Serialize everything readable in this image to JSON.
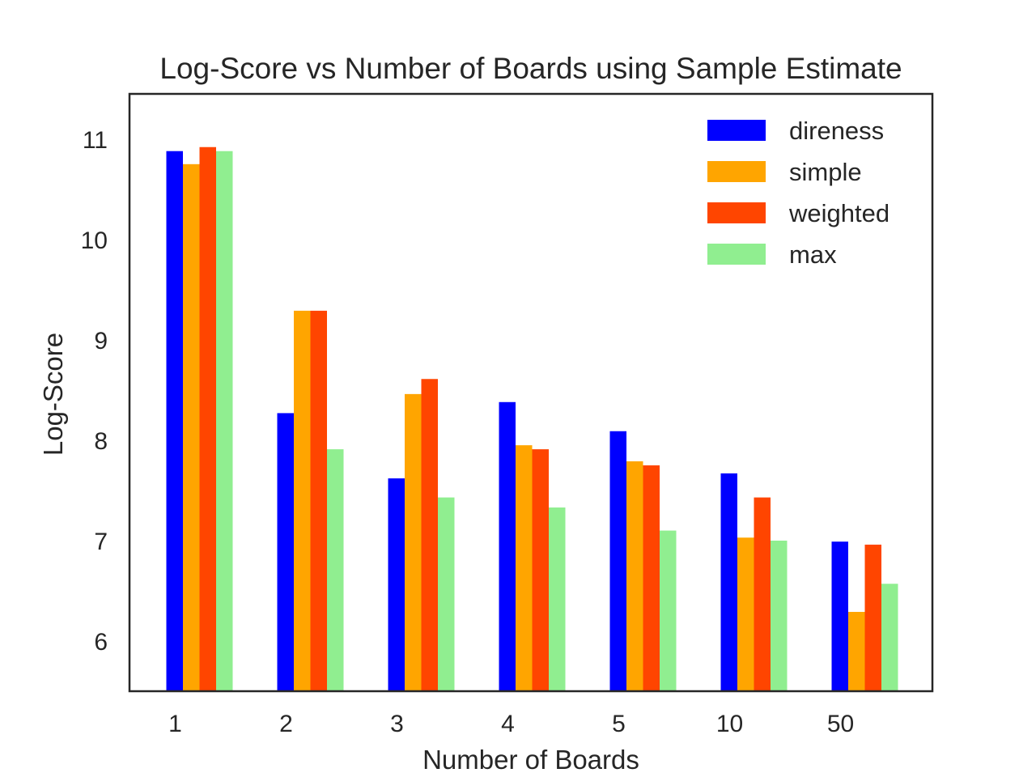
{
  "chart_data": {
    "type": "bar",
    "title": "Log-Score vs Number of Boards using Sample Estimate",
    "xlabel": "Number of Boards",
    "ylabel": "Log-Score",
    "categories": [
      "1",
      "2",
      "3",
      "4",
      "5",
      "10",
      "50"
    ],
    "ylim": [
      5.5,
      11.45
    ],
    "yticks": [
      6,
      7,
      8,
      9,
      10,
      11
    ],
    "grid": false,
    "legend_position": "top-right",
    "series": [
      {
        "name": "direness",
        "color": "#0000ff",
        "values": [
          10.88,
          8.27,
          7.62,
          8.38,
          8.09,
          7.67,
          6.99
        ]
      },
      {
        "name": "simple",
        "color": "#ffa500",
        "values": [
          10.75,
          9.29,
          8.46,
          7.95,
          7.79,
          7.03,
          6.29
        ]
      },
      {
        "name": "weighted",
        "color": "#ff4500",
        "values": [
          10.92,
          9.29,
          8.61,
          7.91,
          7.75,
          7.43,
          6.96
        ]
      },
      {
        "name": "max",
        "color": "#90ee90",
        "values": [
          10.88,
          7.91,
          7.43,
          7.33,
          7.1,
          7.0,
          6.57
        ]
      }
    ]
  }
}
